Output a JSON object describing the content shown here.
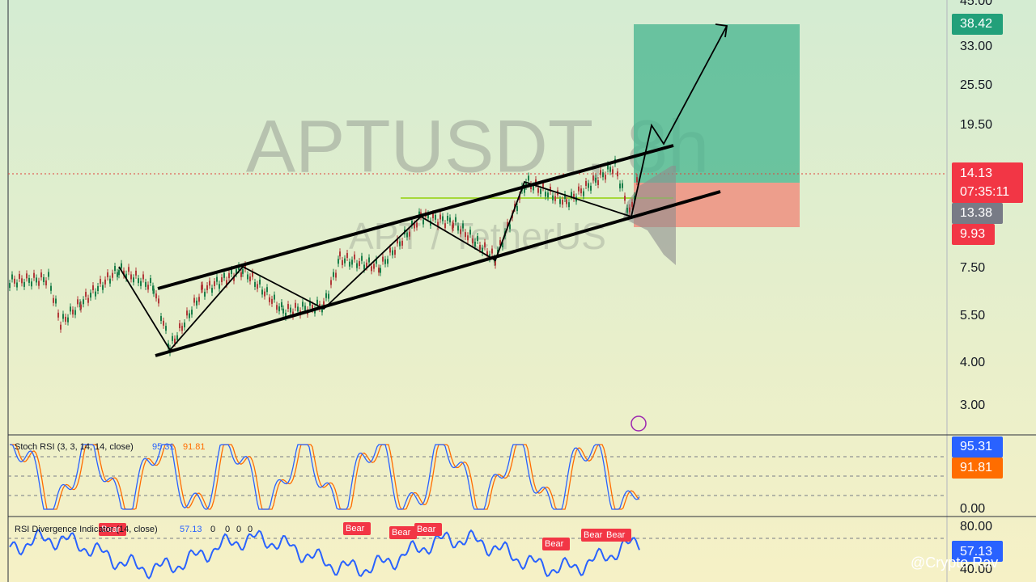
{
  "watermark": {
    "symbol": "APTUSDT, 8h",
    "name": "APT / TetherUS"
  },
  "price_axis": {
    "ticks": [
      "45.00",
      "33.00",
      "25.50",
      "19.50",
      "7.50",
      "5.50",
      "4.00",
      "3.00"
    ]
  },
  "price_tags": {
    "target": "38.42",
    "last": "14.13",
    "countdown": "07:35:11",
    "entry": "13.38",
    "stop": "9.93"
  },
  "stoch_rsi": {
    "label": "Stoch RSI (3, 3, 14, 14, close)",
    "k": "95.31",
    "d": "91.81",
    "axis": [
      "0.00"
    ]
  },
  "rsi_divergence": {
    "label": "RSI Divergence Indicator (14, close)",
    "value": "57.13",
    "flags": [
      "0",
      "0",
      "0",
      "0"
    ],
    "axis": [
      "80.00",
      "40.00"
    ],
    "signals": [
      "Bear",
      "Bear",
      "Bear",
      "Bear",
      "Bear",
      "Bear",
      "Bear"
    ]
  },
  "credit": "@Crypto Rav"
}
